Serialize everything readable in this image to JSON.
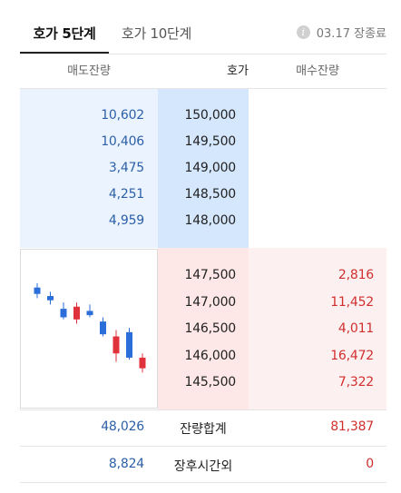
{
  "tabs": {
    "active_label": "호가 5단계",
    "inactive_label": "호가 10단계"
  },
  "status": {
    "info_symbol": "i",
    "text": "03.17 장종료"
  },
  "columns": {
    "sell": "매도잔량",
    "price": "호가",
    "buy": "매수잔량"
  },
  "asks": [
    {
      "qty": "10,602",
      "price": "150,000"
    },
    {
      "qty": "10,406",
      "price": "149,500"
    },
    {
      "qty": "3,475",
      "price": "149,000"
    },
    {
      "qty": "4,251",
      "price": "148,500"
    },
    {
      "qty": "4,959",
      "price": "148,000"
    }
  ],
  "bids": [
    {
      "price": "147,500",
      "qty": "2,816"
    },
    {
      "price": "147,000",
      "qty": "11,452"
    },
    {
      "price": "146,500",
      "qty": "4,011"
    },
    {
      "price": "146,000",
      "qty": "16,472"
    },
    {
      "price": "145,500",
      "qty": "7,322"
    }
  ],
  "summary": {
    "total_label": "잔량합계",
    "total_sell": "48,026",
    "total_buy": "81,387",
    "after_label": "장후시간외",
    "after_sell": "8,824",
    "after_buy": "0"
  },
  "colors": {
    "up": "#e0323b",
    "down": "#2b6ed9"
  },
  "candles": [
    {
      "color": "down",
      "high": 148.9,
      "open": 148.7,
      "close": 148.4,
      "low": 148.2
    },
    {
      "color": "down",
      "high": 148.5,
      "open": 148.3,
      "close": 148.1,
      "low": 147.9
    },
    {
      "color": "down",
      "high": 148.0,
      "open": 147.7,
      "close": 147.3,
      "low": 147.2
    },
    {
      "color": "up",
      "high": 148.0,
      "open": 147.2,
      "close": 147.8,
      "low": 147.0
    },
    {
      "color": "down",
      "high": 147.9,
      "open": 147.6,
      "close": 147.4,
      "low": 147.3
    },
    {
      "color": "down",
      "high": 147.3,
      "open": 147.1,
      "close": 146.5,
      "low": 146.4
    },
    {
      "color": "up",
      "high": 146.7,
      "open": 145.6,
      "close": 146.4,
      "low": 145.2
    },
    {
      "color": "down",
      "high": 146.8,
      "open": 146.6,
      "close": 145.4,
      "low": 145.3
    },
    {
      "color": "up",
      "high": 145.6,
      "open": 144.9,
      "close": 145.4,
      "low": 144.7
    }
  ]
}
